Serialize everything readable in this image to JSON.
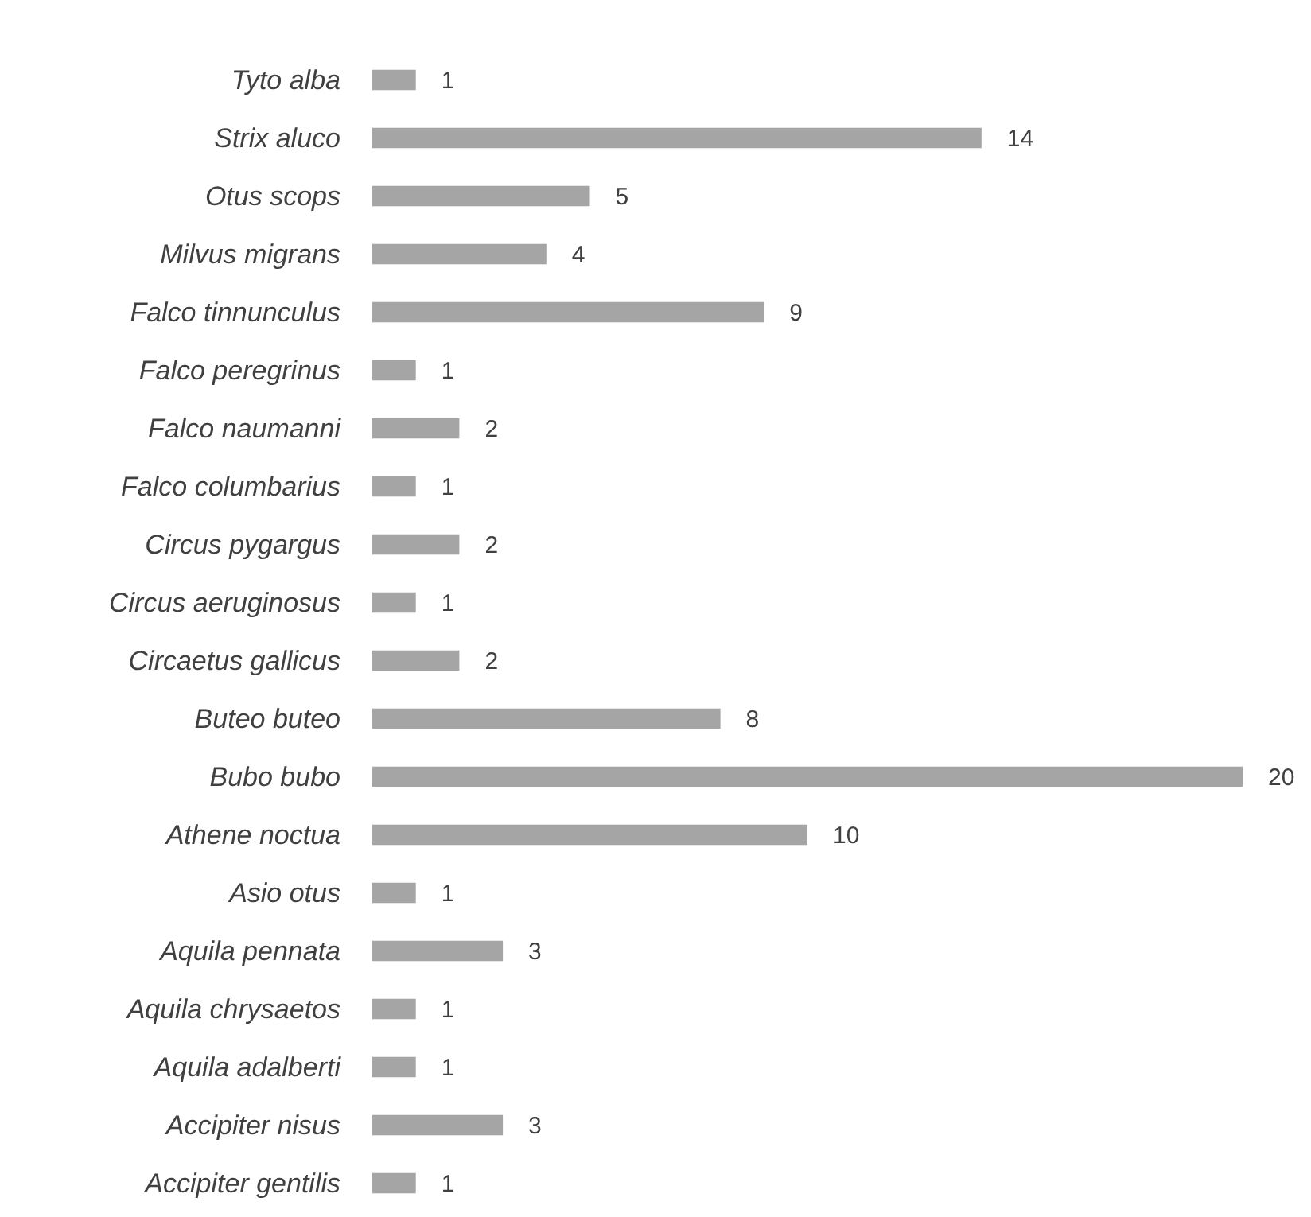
{
  "chart_data": {
    "type": "bar",
    "orientation": "horizontal",
    "categories": [
      "Tyto alba",
      "Strix aluco",
      "Otus scops",
      "Milvus migrans",
      "Falco tinnunculus",
      "Falco peregrinus",
      "Falco naumanni",
      "Falco columbarius",
      "Circus pygargus",
      "Circus aeruginosus",
      "Circaetus gallicus",
      "Buteo buteo",
      "Bubo bubo",
      "Athene noctua",
      "Asio otus",
      "Aquila pennata",
      "Aquila chrysaetos",
      "Aquila adalberti",
      "Accipiter nisus",
      "Accipiter gentilis"
    ],
    "values": [
      1,
      14,
      5,
      4,
      9,
      1,
      2,
      1,
      2,
      1,
      2,
      8,
      20,
      10,
      1,
      3,
      1,
      1,
      3,
      1
    ],
    "color": "#a5a5a5",
    "data_labels": true
  }
}
